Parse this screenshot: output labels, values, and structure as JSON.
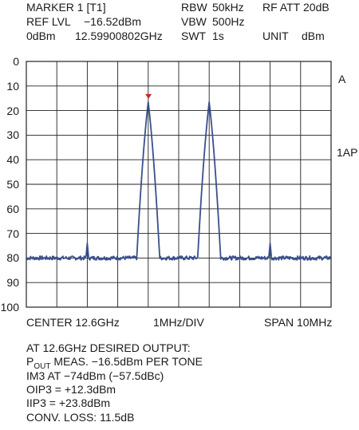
{
  "header": {
    "marker": "MARKER 1 [T1]",
    "ref_lvl_label": "REF LVL",
    "ref_lvl_value": "−16.52dBm",
    "ref_dbm": "0dBm",
    "marker_freq": "12.59900802GHz",
    "rbw_label": "RBW",
    "rbw_value": "50kHz",
    "vbw_label": "VBW",
    "vbw_value": "500Hz",
    "swt_label": "SWT",
    "swt_value": "1s",
    "rf_att": "RF ATT",
    "rf_att_value": "20dB",
    "unit_label": "UNIT",
    "unit_value": "dBm"
  },
  "right_labels": {
    "trace": "A",
    "detector": "1AP"
  },
  "footer": {
    "center": "CENTER 12.6GHz",
    "div": "1MHz/DIV",
    "span": "SPAN 10MHz"
  },
  "notes": {
    "line1": "AT 12.6GHz DESIRED OUTPUT:",
    "line2_p": "P",
    "line2_sub": "OUT",
    "line2_rest": " MEAS. −16.5dBm PER TONE",
    "line3": "IM3 AT −74dBm (−57.5dBc)",
    "line4": "OIP3 = +12.3dBm",
    "line5": "IIP3 = +23.8dBm",
    "line6": "CONV. LOSS: 11.5dB"
  },
  "colors": {
    "trace": "#3a4f8c",
    "marker": "#cc2a1e",
    "grid": "#222222"
  },
  "chart_data": {
    "type": "line",
    "x_unit": "GHz",
    "y_unit": "dBm",
    "xlim": [
      12.595,
      12.605
    ],
    "y_tick_labels": [
      "0",
      "10",
      "20",
      "30",
      "40",
      "50",
      "60",
      "70",
      "80",
      "90",
      "100"
    ],
    "y_ticks_value": [
      0,
      -10,
      -20,
      -30,
      -40,
      -50,
      -60,
      -70,
      -80,
      -90,
      -100
    ],
    "ylim": [
      -100,
      0
    ],
    "noise_floor": -80,
    "peaks": [
      {
        "x": 12.599,
        "y": -16.5
      },
      {
        "x": 12.601,
        "y": -16.5
      },
      {
        "x": 12.597,
        "y": -74
      },
      {
        "x": 12.603,
        "y": -74
      }
    ],
    "marker": {
      "x": 12.59900802,
      "y": -16.52
    },
    "grid": true
  }
}
